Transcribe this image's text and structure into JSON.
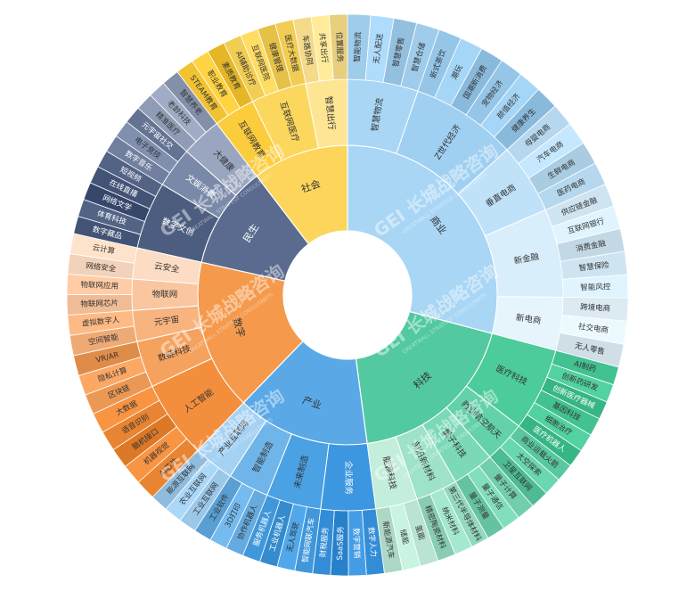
{
  "chart_data": {
    "type": "sunburst",
    "title": "",
    "watermark": "GEI 长城战略咨询",
    "watermark_sub": "GREATWALL STRATEGY CONSULTANTS",
    "categories": [
      {
        "name": "商业",
        "color": "#a9d6f5",
        "children": [
          {
            "name": "智慧物流",
            "color": "#a9d6f5",
            "leaves": [
              "智能物流",
              "无人配送",
              "智慧零售",
              "智慧仓储"
            ]
          },
          {
            "name": "Z世代经济",
            "color": "#9fd0f2",
            "leaves": [
              "新式茶饮",
              "潮玩",
              "国潮新消费",
              "宠物经济",
              "颜值经济",
              "健康养生"
            ]
          },
          {
            "name": "垂直电商",
            "color": "#bfe2f8",
            "leaves": [
              "母婴电商",
              "汽车电商",
              "生鲜电商",
              "医药电商"
            ]
          },
          {
            "name": "新金融",
            "color": "#d9eefb",
            "leaves": [
              "供应链金融",
              "互联网银行",
              "消费金融",
              "智慧保险",
              "智能风控"
            ]
          },
          {
            "name": "新电商",
            "color": "#e6f4fc",
            "leaves": [
              "跨境电商",
              "社交电商",
              "无人零售"
            ]
          }
        ]
      },
      {
        "name": "科技",
        "color": "#52c9a0",
        "children": [
          {
            "name": "医疗科技",
            "color": "#4ccb9b",
            "leaves": [
              "AI制药",
              "创新药研发",
              "创新医疗器械",
              "基因科技",
              "细胞治疗",
              "医疗机器人"
            ]
          },
          {
            "name": "商业航空航天",
            "color": "#63d1aa",
            "leaves": [
              "商业运载火箭",
              "太空探索",
              "卫星互联网"
            ]
          },
          {
            "name": "量子科技",
            "color": "#7cd9b8",
            "leaves": [
              "量子计算",
              "量子通信",
              "量子测量"
            ]
          },
          {
            "name": "前沿新材料",
            "color": "#9ee3c9",
            "leaves": [
              "第三代半导体材料",
              "纳米材料",
              "精密陶瓷材料"
            ]
          },
          {
            "name": "能源科技",
            "color": "#c2eedb",
            "leaves": [
              "氢能",
              "储能",
              "新能源汽车"
            ]
          }
        ]
      },
      {
        "name": "产业",
        "color": "#5aa9e6",
        "children": [
          {
            "name": "企业服务",
            "color": "#3d97e0",
            "leaves": [
              "数字人力",
              "数字营销",
              "SaaS服务",
              "财税服务"
            ]
          },
          {
            "name": "未来制造",
            "color": "#4aa1e4",
            "leaves": [
              "智能网联汽车",
              "无人驾驶",
              "工业机器人",
              "服务机器人"
            ]
          },
          {
            "name": "智能制造",
            "color": "#6fb5ea",
            "leaves": [
              "协作机器人",
              "3D打印",
              "工业软件"
            ]
          },
          {
            "name": "产业互联网",
            "color": "#a5d1f3",
            "leaves": [
              "工业互联网",
              "农业互联网",
              "能源互联网"
            ]
          }
        ]
      },
      {
        "name": "数字",
        "color": "#f59a4d",
        "children": [
          {
            "name": "人工智能",
            "color": "#f28e3c",
            "leaves": [
              "AI芯片",
              "机器视觉",
              "脑机接口",
              "语音识别",
              "大数据"
            ]
          },
          {
            "name": "数链科技",
            "color": "#f6a25f",
            "leaves": [
              "区块链",
              "隐私计算",
              "VR/AR"
            ]
          },
          {
            "name": "元宇宙",
            "color": "#f8b47f",
            "leaves": [
              "空间智能",
              "虚拟数字人"
            ]
          },
          {
            "name": "物联网",
            "color": "#fac6a0",
            "leaves": [
              "物联网芯片",
              "物联网应用"
            ]
          },
          {
            "name": "云安全",
            "color": "#fcdcc4",
            "leaves": [
              "网络安全",
              "云计算"
            ]
          }
        ]
      },
      {
        "name": "民生",
        "color": "#5a6b8f",
        "children": [
          {
            "name": "数字文创",
            "color": "#4d5d80",
            "leaves": [
              "数字藏品",
              "体育科技",
              "网络文学",
              "在线直播",
              "短视频"
            ]
          },
          {
            "name": "文娱消费",
            "color": "#7a89a8",
            "leaves": [
              "数字音乐",
              "电子竞技",
              "元宇宙社交"
            ]
          },
          {
            "name": "大健康",
            "color": "#9aa6bf",
            "leaves": [
              "精准医疗",
              "老龄科技",
              "智慧养老"
            ]
          }
        ]
      },
      {
        "name": "社会",
        "color": "#fcd55a",
        "children": [
          {
            "name": "互联网教育",
            "color": "#fbcd3c",
            "leaves": [
              "STEAM教育",
              "职业教育",
              "素质教育"
            ]
          },
          {
            "name": "互联网医疗",
            "color": "#fcd75e",
            "leaves": [
              "AI辅助诊疗",
              "互联网医院",
              "健康管理",
              "医疗大数据"
            ]
          },
          {
            "name": "智慧出行",
            "color": "#fde594",
            "leaves": [
              "车路协同",
              "共享出行",
              "位置服务"
            ]
          }
        ]
      }
    ]
  }
}
